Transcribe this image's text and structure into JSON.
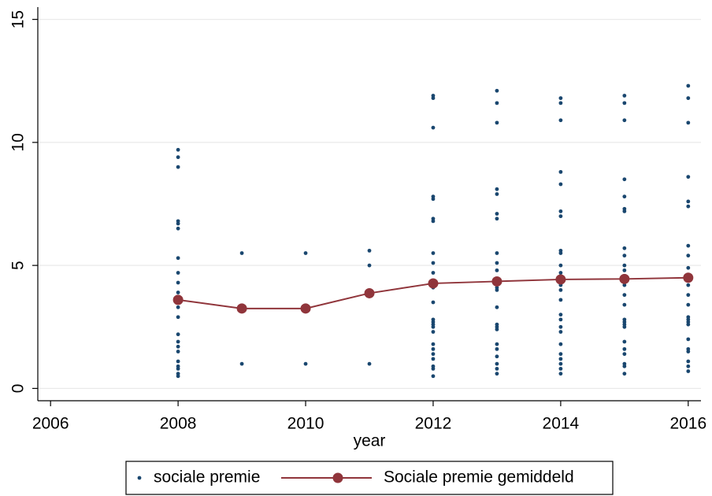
{
  "chart_data": {
    "type": "scatter",
    "x_label": "year",
    "grid": true,
    "xlim": [
      2005.8,
      2016.2
    ],
    "xticks": [
      2006,
      2008,
      2010,
      2012,
      2014,
      2016
    ],
    "ylim": [
      -0.5,
      15.5
    ],
    "yticks": [
      0,
      5,
      10,
      15
    ],
    "legend": "bottom",
    "series": [
      {
        "name": "sociale premie",
        "type": "scatter",
        "color": "#1a476f",
        "x": [
          2008,
          2008,
          2008,
          2008,
          2008,
          2008,
          2008,
          2008,
          2008,
          2008,
          2008,
          2008,
          2008,
          2008,
          2008,
          2008,
          2008,
          2008,
          2008,
          2008,
          2008,
          2008,
          2009,
          2009,
          2010,
          2010,
          2011,
          2011,
          2011,
          2012,
          2012,
          2012,
          2012,
          2012,
          2012,
          2012,
          2012,
          2012,
          2012,
          2012,
          2012,
          2012,
          2012,
          2012,
          2012,
          2012,
          2012,
          2012,
          2012,
          2012,
          2012,
          2012,
          2012,
          2012,
          2013,
          2013,
          2013,
          2013,
          2013,
          2013,
          2013,
          2013,
          2013,
          2013,
          2013,
          2013,
          2013,
          2013,
          2013,
          2013,
          2013,
          2013,
          2013,
          2013,
          2013,
          2013,
          2013,
          2013,
          2014,
          2014,
          2014,
          2014,
          2014,
          2014,
          2014,
          2014,
          2014,
          2014,
          2014,
          2014,
          2014,
          2014,
          2014,
          2014,
          2014,
          2014,
          2014,
          2014,
          2014,
          2014,
          2014,
          2014,
          2014,
          2015,
          2015,
          2015,
          2015,
          2015,
          2015,
          2015,
          2015,
          2015,
          2015,
          2015,
          2015,
          2015,
          2015,
          2015,
          2015,
          2015,
          2015,
          2015,
          2015,
          2015,
          2015,
          2015,
          2015,
          2015,
          2016,
          2016,
          2016,
          2016,
          2016,
          2016,
          2016,
          2016,
          2016,
          2016,
          2016,
          2016,
          2016,
          2016,
          2016,
          2016,
          2016,
          2016,
          2016,
          2016,
          2016,
          2016,
          2016
        ],
        "values": [
          9.7,
          9.4,
          9.0,
          6.8,
          6.7,
          6.5,
          5.3,
          4.7,
          4.3,
          3.9,
          3.6,
          3.3,
          2.9,
          2.2,
          1.9,
          1.7,
          1.5,
          1.1,
          0.9,
          0.8,
          0.6,
          0.5,
          5.5,
          1.0,
          5.5,
          1.0,
          5.6,
          5.0,
          1.0,
          11.9,
          11.8,
          10.6,
          7.8,
          7.7,
          6.9,
          6.8,
          5.5,
          5.1,
          4.7,
          4.3,
          4.1,
          3.5,
          2.8,
          2.7,
          2.6,
          2.5,
          2.3,
          1.8,
          1.6,
          1.4,
          1.2,
          0.9,
          0.8,
          0.5,
          12.1,
          11.6,
          10.8,
          8.1,
          7.9,
          7.1,
          6.9,
          5.5,
          5.1,
          4.8,
          4.4,
          4.3,
          4.1,
          4.0,
          3.3,
          2.6,
          2.5,
          2.4,
          1.8,
          1.6,
          1.3,
          1.0,
          0.8,
          0.6,
          11.8,
          11.6,
          10.9,
          8.8,
          8.3,
          7.2,
          7.0,
          5.6,
          5.5,
          5.0,
          4.7,
          4.4,
          4.2,
          4.0,
          3.6,
          3.0,
          2.8,
          2.5,
          2.3,
          1.8,
          1.4,
          1.2,
          1.0,
          0.8,
          0.6,
          11.9,
          11.6,
          10.9,
          8.5,
          7.8,
          7.3,
          7.2,
          5.7,
          5.4,
          5.0,
          4.8,
          4.5,
          4.2,
          3.8,
          3.4,
          2.8,
          2.7,
          2.6,
          2.5,
          1.9,
          1.6,
          1.4,
          1.0,
          0.9,
          0.6,
          12.3,
          11.8,
          10.8,
          8.6,
          7.6,
          7.4,
          5.8,
          5.4,
          4.9,
          4.5,
          4.2,
          3.8,
          3.4,
          2.9,
          2.8,
          2.7,
          2.6,
          2.0,
          1.6,
          1.5,
          1.1,
          0.9,
          0.7
        ]
      },
      {
        "name": "Sociale premie gemiddeld",
        "type": "line",
        "color": "#90353b",
        "x": [
          2008,
          2009,
          2010,
          2011,
          2012,
          2013,
          2014,
          2015,
          2016
        ],
        "values": [
          3.6,
          3.25,
          3.25,
          3.87,
          4.27,
          4.35,
          4.43,
          4.45,
          4.5
        ]
      }
    ]
  }
}
